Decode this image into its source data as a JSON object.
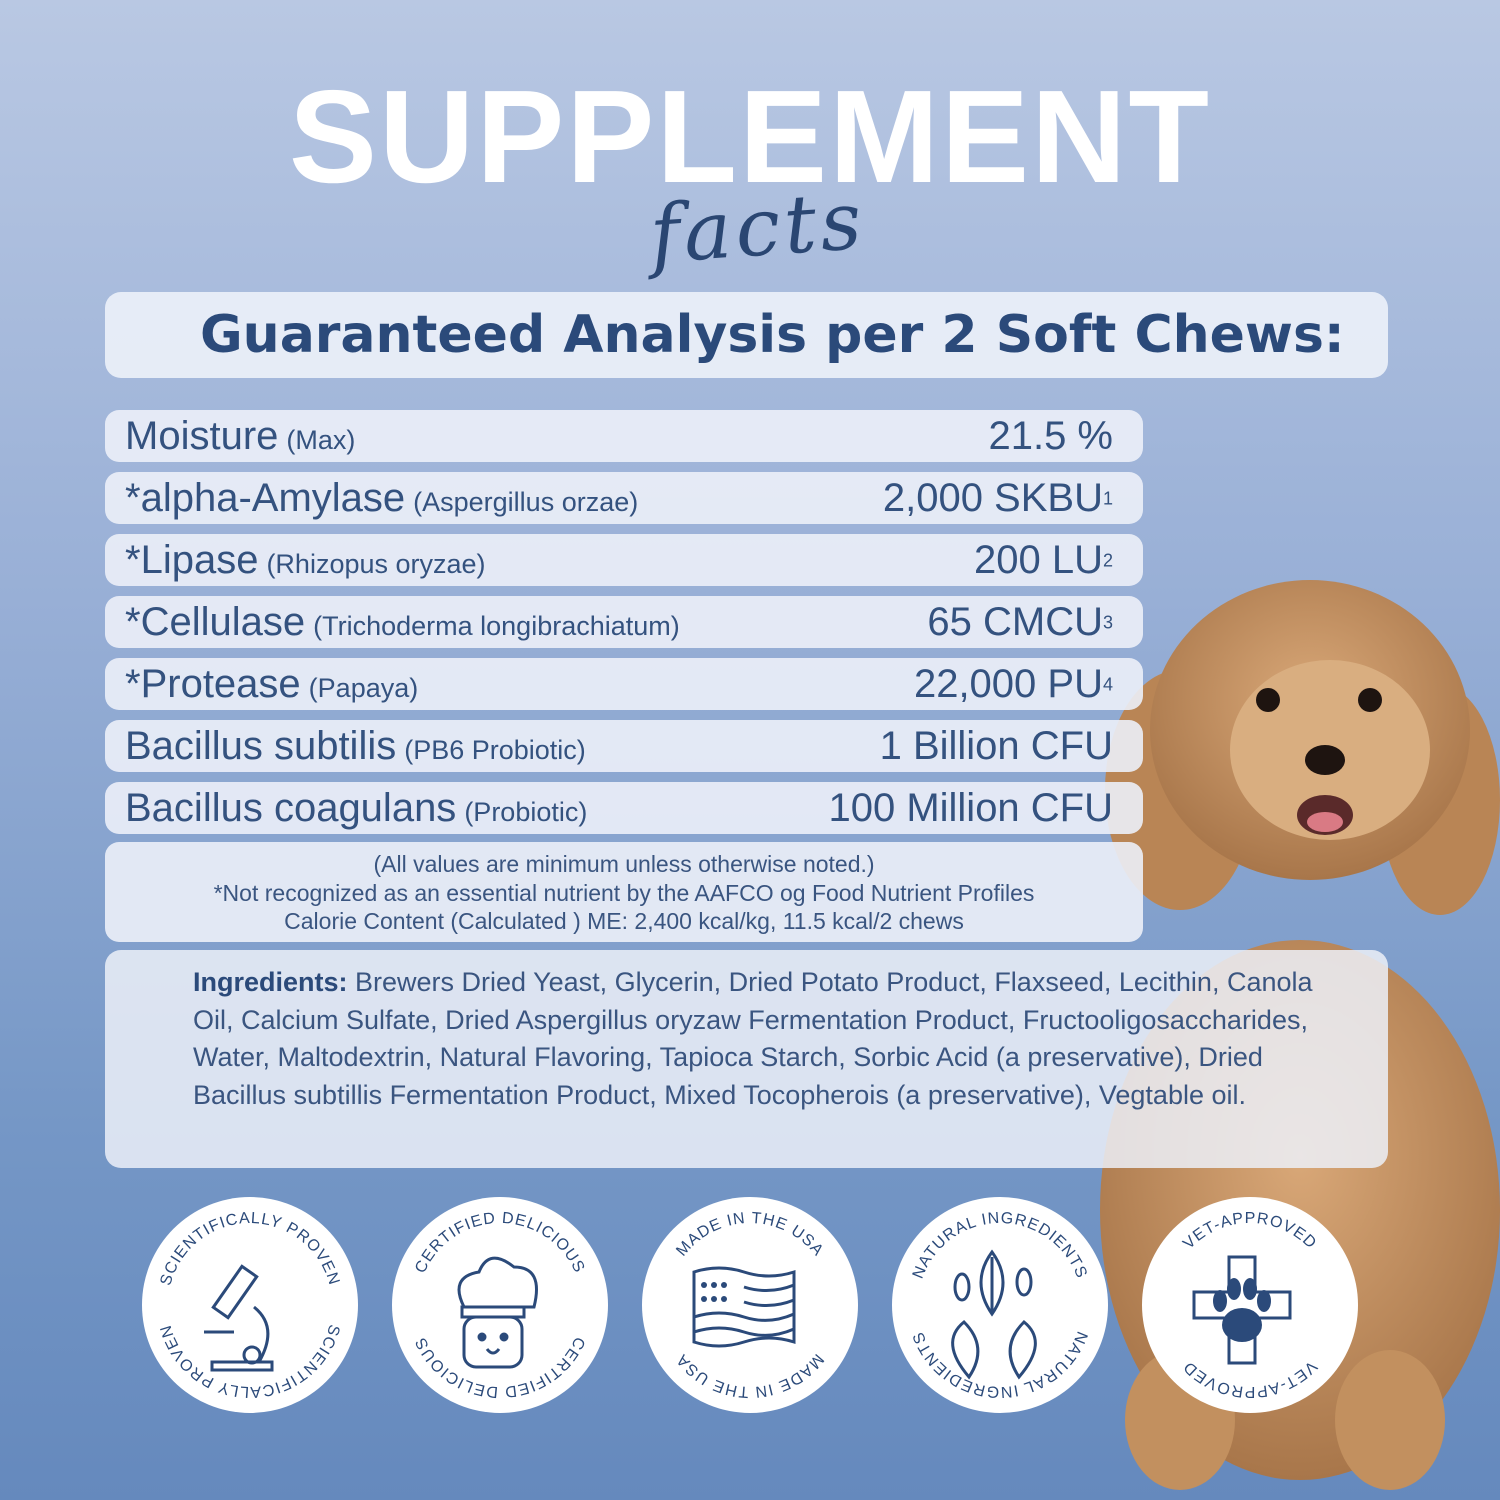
{
  "header": {
    "title": "SUPPLEMENT",
    "script": "facts"
  },
  "banner": "Guaranteed Analysis per 2 Soft Chews:",
  "rows": [
    {
      "name": "Moisture",
      "source": "(Max)",
      "value": "21.5 %",
      "note": ""
    },
    {
      "name": "*alpha-Amylase",
      "source": "(Aspergillus orzae)",
      "value": "2,000 SKBU",
      "note": "1"
    },
    {
      "name": "*Lipase",
      "source": "(Rhizopus oryzae)",
      "value": "200 LU",
      "note": "2"
    },
    {
      "name": "*Cellulase",
      "source": "(Trichoderma longibrachiatum)",
      "value": "65 CMCU",
      "note": "3"
    },
    {
      "name": "*Protease",
      "source": "(Papaya)",
      "value": "22,000 PU",
      "note": "4"
    },
    {
      "name": "Bacillus subtilis",
      "source": "(PB6 Probiotic)",
      "value": "1 Billion CFU",
      "note": ""
    },
    {
      "name": "Bacillus coagulans",
      "source": "(Probiotic)",
      "value": "100 Million CFU",
      "note": ""
    }
  ],
  "notes": [
    "(All values are minimum unless otherwise noted.)",
    "*Not recognized as an essential nutrient by the AAFCO og Food Nutrient Profiles",
    "Calorie Content (Calculated ) ME: 2,400 kcal/kg, 11.5 kcal/2 chews"
  ],
  "ingredients": {
    "label": "Ingredients:",
    "text": "Brewers Dried Yeast, Glycerin, Dried Potato Product, Flaxseed, Lecithin, Canola Oil, Calcium Sulfate, Dried Aspergillus oryzaw Fermentation Product, Fructooligosaccharides, Water, Maltodextrin, Natural Flavoring, Tapioca Starch, Sorbic Acid (a preservative), Dried Bacillus subtillis Fermentation Product, Mixed Tocopherois (a preservative), Vegtable oil."
  },
  "badges": [
    {
      "text": "SCIENTIFICALLY PROVEN",
      "icon": "microscope-icon"
    },
    {
      "text": "CERTIFIED DELICIOUS",
      "icon": "chef-dog-icon"
    },
    {
      "text": "MADE IN THE USA",
      "icon": "us-flag-icon"
    },
    {
      "text": "NATURAL INGREDIENTS",
      "icon": "leaves-icon"
    },
    {
      "text": "VET-APPROVED",
      "icon": "paw-cross-icon"
    }
  ],
  "colors": {
    "navy": "#2b4a7a",
    "panel": "#ecf0f8"
  }
}
